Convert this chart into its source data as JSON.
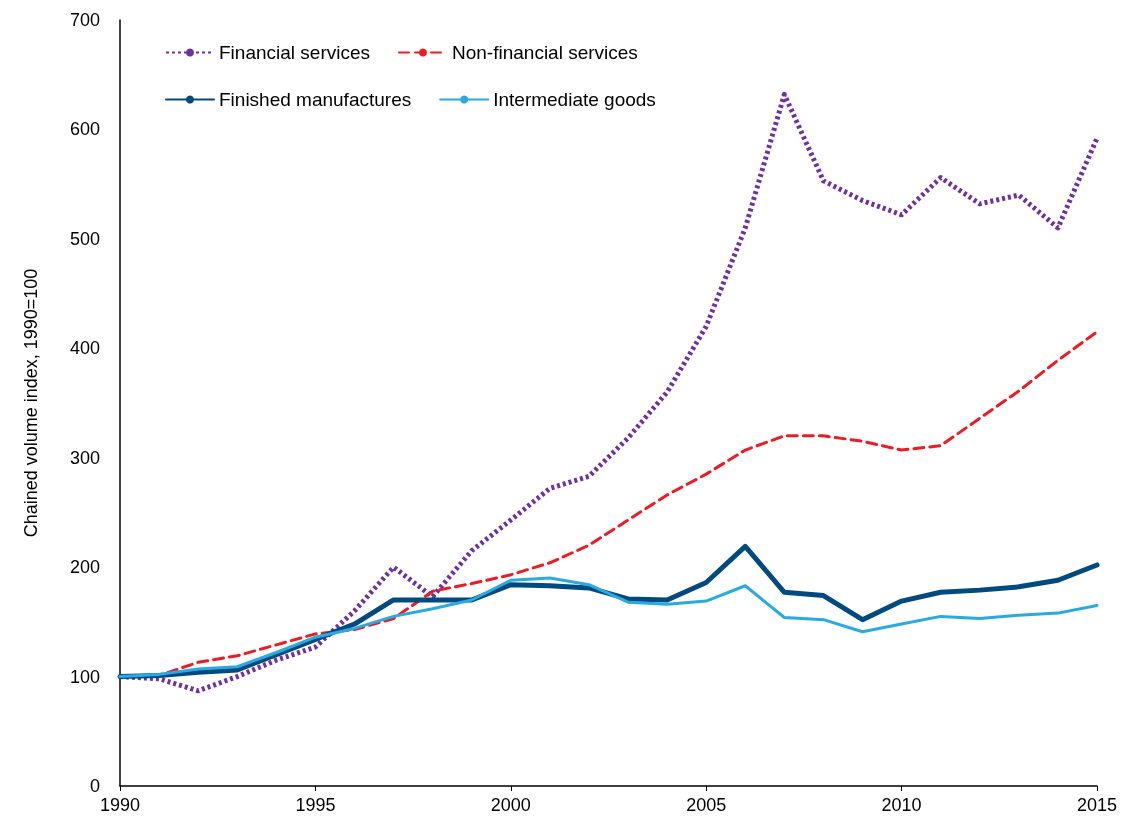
{
  "chart_data": {
    "type": "line",
    "ylabel": "Chained volume index, 1990=100",
    "x": [
      1990,
      1991,
      1992,
      1993,
      1994,
      1995,
      1996,
      1997,
      1998,
      1999,
      2000,
      2001,
      2002,
      2003,
      2004,
      2005,
      2006,
      2007,
      2008,
      2009,
      2010,
      2011,
      2012,
      2013,
      2014,
      2015
    ],
    "xlim": [
      1990,
      2015
    ],
    "xticks": [
      1990,
      1995,
      2000,
      2005,
      2010,
      2015
    ],
    "ylim": [
      0,
      700
    ],
    "yticks": [
      0,
      100,
      200,
      300,
      400,
      500,
      600,
      700
    ],
    "grid": false,
    "legend": "top left",
    "marker": "none",
    "series": [
      {
        "name": "Financial services",
        "color": "#7030a0",
        "line_style": "dotted",
        "values": [
          100,
          98,
          87,
          100,
          115,
          127,
          160,
          200,
          173,
          215,
          243,
          272,
          283,
          318,
          360,
          420,
          510,
          632,
          553,
          535,
          522,
          556,
          532,
          540,
          510,
          592
        ]
      },
      {
        "name": "Non-financial services",
        "color": "#ed1c24",
        "line_style": "dashed",
        "values": [
          100,
          101,
          113,
          119,
          129,
          139,
          143,
          153,
          178,
          185,
          193,
          204,
          220,
          243,
          266,
          285,
          307,
          320,
          320,
          315,
          307,
          311,
          336,
          361,
          389,
          415
        ]
      },
      {
        "name": "Finished manufactures",
        "color": "#004a80",
        "line_style": "solid",
        "values": [
          100,
          101,
          104,
          106,
          120,
          134,
          148,
          170,
          170,
          170,
          184,
          183,
          181,
          171,
          170,
          186,
          219,
          177,
          174,
          152,
          169,
          177,
          179,
          182,
          188,
          202
        ]
      },
      {
        "name": "Intermediate goods",
        "color": "#29abe2",
        "line_style": "solid",
        "values": [
          100,
          102,
          107,
          109,
          122,
          136,
          144,
          155,
          162,
          170,
          188,
          190,
          184,
          168,
          166,
          169,
          183,
          154,
          152,
          141,
          148,
          155,
          153,
          156,
          158,
          165
        ]
      }
    ]
  }
}
